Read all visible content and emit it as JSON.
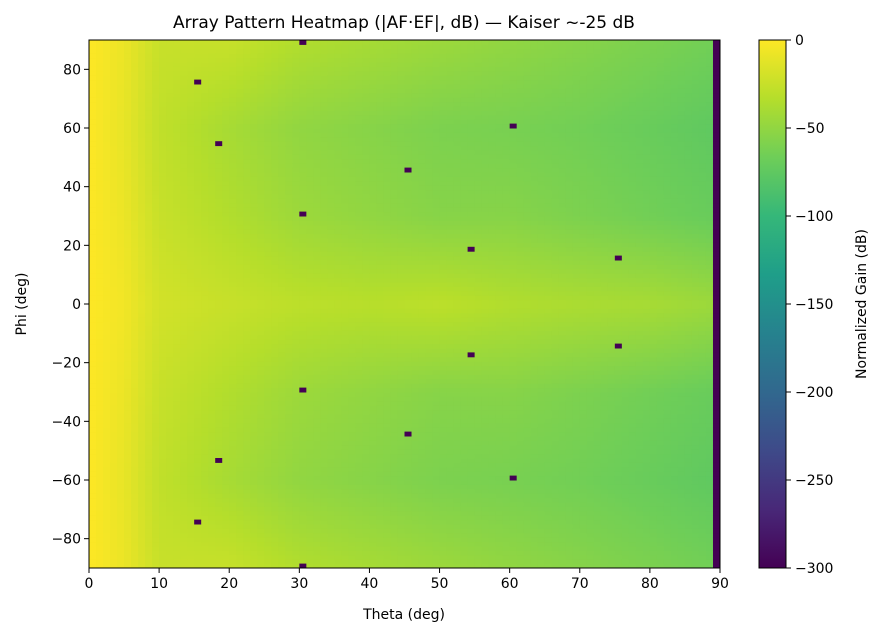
{
  "chart_data": {
    "type": "heatmap",
    "title": "Array Pattern Heatmap (|AF·EF|, dB) — Kaiser ~-25 dB",
    "xlabel": "Theta (deg)",
    "ylabel": "Phi (deg)",
    "xlim": [
      0,
      90
    ],
    "ylim": [
      -90,
      90
    ],
    "xticks": [
      0,
      10,
      20,
      30,
      40,
      50,
      60,
      70,
      80,
      90
    ],
    "yticks": [
      -80,
      -60,
      -40,
      -20,
      0,
      20,
      40,
      60,
      80
    ],
    "colormap": "viridis",
    "colorbar": {
      "label": "Normalized Gain (dB)",
      "range": [
        -300,
        0
      ],
      "ticks": [
        0,
        -50,
        -100,
        -150,
        -200,
        -250,
        -300
      ]
    },
    "grid": false,
    "approx_grid": {
      "theta": [
        0,
        5,
        10,
        20,
        30,
        40,
        50,
        60,
        70,
        80,
        89,
        90
      ],
      "phi": [
        -90,
        -60,
        -30,
        0,
        30,
        60,
        90
      ],
      "values_db": [
        [
          0,
          -8,
          -25,
          -25,
          -35,
          -40,
          -45,
          -50,
          -55,
          -60,
          -65,
          -300
        ],
        [
          0,
          -10,
          -28,
          -40,
          -50,
          -55,
          -60,
          -62,
          -65,
          -70,
          -75,
          -300
        ],
        [
          0,
          -8,
          -25,
          -35,
          -45,
          -50,
          -55,
          -55,
          -60,
          -65,
          -70,
          -300
        ],
        [
          0,
          -5,
          -20,
          -25,
          -30,
          -32,
          -30,
          -35,
          -38,
          -40,
          -45,
          -300
        ],
        [
          0,
          -8,
          -25,
          -35,
          -45,
          -50,
          -55,
          -55,
          -60,
          -65,
          -70,
          -300
        ],
        [
          0,
          -10,
          -28,
          -40,
          -50,
          -55,
          -60,
          -62,
          -65,
          -70,
          -75,
          -300
        ],
        [
          0,
          -8,
          -25,
          -25,
          -35,
          -40,
          -45,
          -50,
          -55,
          -60,
          -65,
          -300
        ]
      ]
    },
    "nulls": [
      {
        "theta": 15,
        "phi": 75,
        "db": -300
      },
      {
        "theta": 18,
        "phi": 54,
        "db": -300
      },
      {
        "theta": 30,
        "phi": 30,
        "db": -300
      },
      {
        "theta": 45,
        "phi": 45,
        "db": -300
      },
      {
        "theta": 54,
        "phi": 18,
        "db": -300
      },
      {
        "theta": 60,
        "phi": 60,
        "db": -300
      },
      {
        "theta": 75,
        "phi": 15,
        "db": -300
      },
      {
        "theta": 30,
        "phi": 90,
        "db": -300
      },
      {
        "theta": 15,
        "phi": -75,
        "db": -300
      },
      {
        "theta": 18,
        "phi": -54,
        "db": -300
      },
      {
        "theta": 30,
        "phi": -30,
        "db": -300
      },
      {
        "theta": 45,
        "phi": -45,
        "db": -300
      },
      {
        "theta": 54,
        "phi": -18,
        "db": -300
      },
      {
        "theta": 60,
        "phi": -60,
        "db": -300
      },
      {
        "theta": 75,
        "phi": -15,
        "db": -300
      },
      {
        "theta": 30,
        "phi": -90,
        "db": -300
      }
    ]
  }
}
